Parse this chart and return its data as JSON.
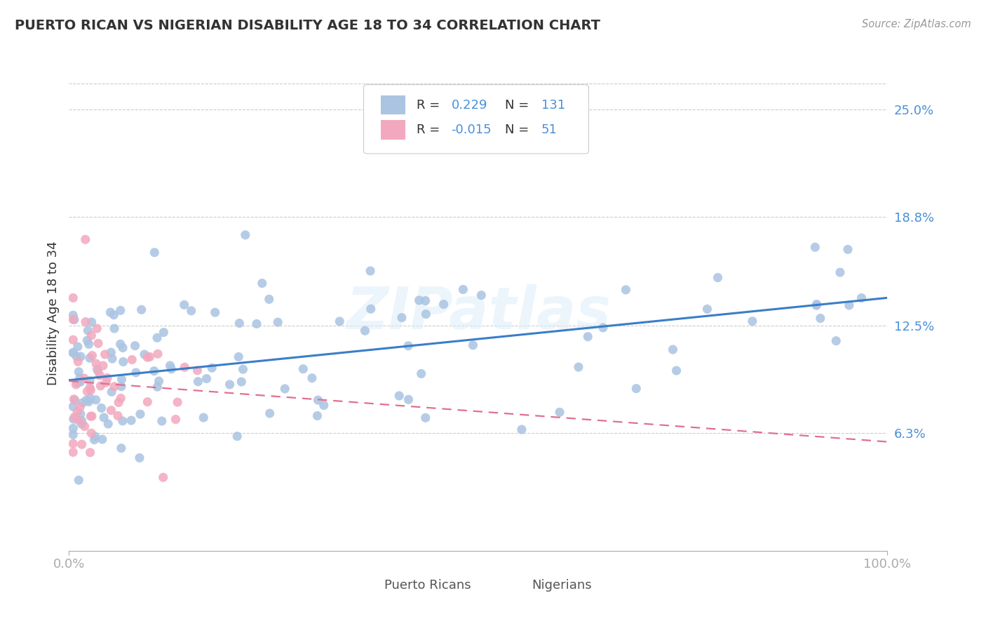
{
  "title": "PUERTO RICAN VS NIGERIAN DISABILITY AGE 18 TO 34 CORRELATION CHART",
  "source": "Source: ZipAtlas.com",
  "ylabel": "Disability Age 18 to 34",
  "xlim": [
    0,
    1.0
  ],
  "ylim": [
    -0.005,
    0.27
  ],
  "yticks": [
    0.063,
    0.125,
    0.188,
    0.25
  ],
  "ytick_labels": [
    "6.3%",
    "12.5%",
    "18.8%",
    "25.0%"
  ],
  "pr_color": "#aac4e2",
  "ng_color": "#f2a8be",
  "pr_line_color": "#3a7ec8",
  "ng_line_color": "#e07090",
  "pr_R": 0.229,
  "pr_N": 131,
  "ng_R": -0.015,
  "ng_N": 51,
  "watermark": "ZIPatlas",
  "background_color": "#ffffff",
  "grid_color": "#cccccc",
  "title_color": "#333333",
  "axis_label_color": "#333333",
  "tick_label_color": "#4a90d9",
  "legend_text_color": "#333333",
  "legend_val_color": "#4a90d9"
}
